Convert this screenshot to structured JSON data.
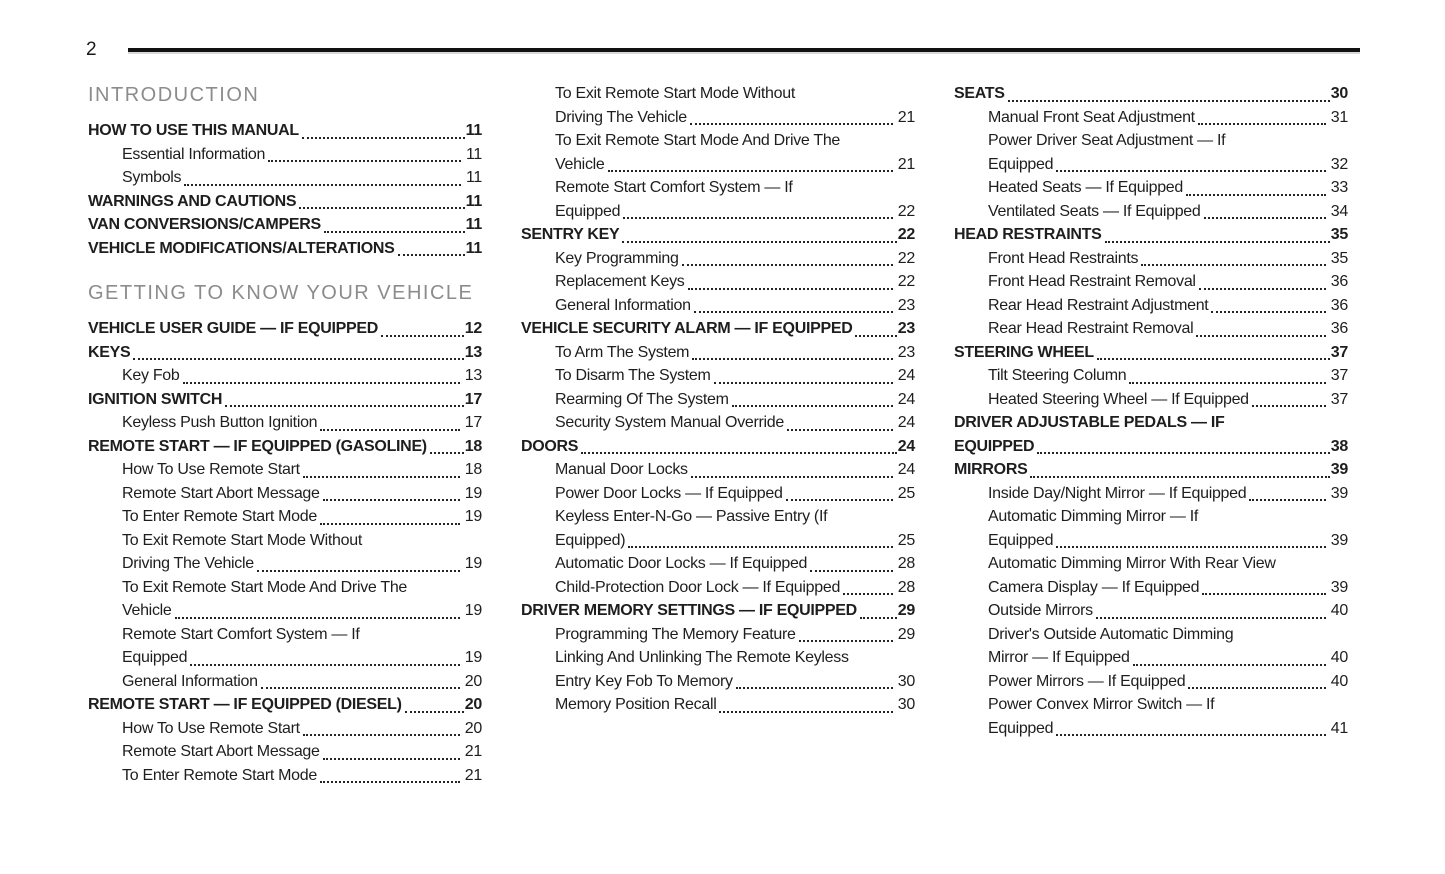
{
  "page_number": "2",
  "columns": [
    {
      "blocks": [
        {
          "type": "heading",
          "text": "INTRODUCTION"
        },
        {
          "type": "entry",
          "level": 1,
          "lines": [
            "HOW TO USE THIS MANUAL"
          ],
          "page": "11"
        },
        {
          "type": "entry",
          "level": 2,
          "lines": [
            "Essential Information"
          ],
          "page": "11"
        },
        {
          "type": "entry",
          "level": 2,
          "lines": [
            "Symbols"
          ],
          "page": "11"
        },
        {
          "type": "entry",
          "level": 1,
          "lines": [
            "WARNINGS AND CAUTIONS"
          ],
          "page": "11"
        },
        {
          "type": "entry",
          "level": 1,
          "lines": [
            "VAN CONVERSIONS/CAMPERS"
          ],
          "page": "11"
        },
        {
          "type": "entry",
          "level": 1,
          "lines": [
            "VEHICLE MODIFICATIONS/ALTERATIONS"
          ],
          "page": "11"
        },
        {
          "type": "heading",
          "text": "GETTING TO KNOW YOUR VEHICLE"
        },
        {
          "type": "entry",
          "level": 1,
          "lines": [
            "VEHICLE USER GUIDE — IF EQUIPPED"
          ],
          "page": "12"
        },
        {
          "type": "entry",
          "level": 1,
          "lines": [
            "KEYS"
          ],
          "page": "13"
        },
        {
          "type": "entry",
          "level": 2,
          "lines": [
            "Key Fob"
          ],
          "page": "13"
        },
        {
          "type": "entry",
          "level": 1,
          "lines": [
            "IGNITION SWITCH"
          ],
          "page": "17"
        },
        {
          "type": "entry",
          "level": 2,
          "lines": [
            "Keyless Push Button Ignition"
          ],
          "page": "17"
        },
        {
          "type": "entry",
          "level": 1,
          "lines": [
            "REMOTE START — IF EQUIPPED (GASOLINE)"
          ],
          "page": "18"
        },
        {
          "type": "entry",
          "level": 2,
          "lines": [
            "How To Use Remote Start"
          ],
          "page": "18"
        },
        {
          "type": "entry",
          "level": 2,
          "lines": [
            "Remote Start Abort Message"
          ],
          "page": "19"
        },
        {
          "type": "entry",
          "level": 2,
          "lines": [
            "To Enter Remote Start Mode"
          ],
          "page": "19"
        },
        {
          "type": "entry",
          "level": 2,
          "lines": [
            "To Exit Remote Start Mode Without",
            "Driving The Vehicle"
          ],
          "page": "19"
        },
        {
          "type": "entry",
          "level": 2,
          "lines": [
            "To Exit Remote Start Mode And Drive The",
            "Vehicle"
          ],
          "page": "19"
        },
        {
          "type": "entry",
          "level": 2,
          "lines": [
            "Remote Start Comfort System — If",
            "Equipped"
          ],
          "page": "19"
        },
        {
          "type": "entry",
          "level": 2,
          "lines": [
            "General Information"
          ],
          "page": "20"
        },
        {
          "type": "entry",
          "level": 1,
          "lines": [
            "REMOTE START — IF EQUIPPED (DIESEL)"
          ],
          "page": "20"
        },
        {
          "type": "entry",
          "level": 2,
          "lines": [
            "How To Use Remote Start"
          ],
          "page": "20"
        },
        {
          "type": "entry",
          "level": 2,
          "lines": [
            "Remote Start Abort Message"
          ],
          "page": "21"
        },
        {
          "type": "entry",
          "level": 2,
          "lines": [
            "To Enter Remote Start Mode"
          ],
          "page": "21"
        }
      ]
    },
    {
      "blocks": [
        {
          "type": "entry",
          "level": 2,
          "lines": [
            "To Exit Remote Start Mode Without",
            "Driving The Vehicle"
          ],
          "page": "21"
        },
        {
          "type": "entry",
          "level": 2,
          "lines": [
            "To Exit Remote Start Mode And Drive The",
            "Vehicle"
          ],
          "page": "21"
        },
        {
          "type": "entry",
          "level": 2,
          "lines": [
            "Remote Start Comfort System — If",
            "Equipped"
          ],
          "page": "22"
        },
        {
          "type": "entry",
          "level": 1,
          "lines": [
            "SENTRY KEY"
          ],
          "page": "22"
        },
        {
          "type": "entry",
          "level": 2,
          "lines": [
            "Key Programming"
          ],
          "page": "22"
        },
        {
          "type": "entry",
          "level": 2,
          "lines": [
            "Replacement Keys"
          ],
          "page": "22"
        },
        {
          "type": "entry",
          "level": 2,
          "lines": [
            "General Information"
          ],
          "page": "23"
        },
        {
          "type": "entry",
          "level": 1,
          "lines": [
            "VEHICLE SECURITY ALARM — IF EQUIPPED"
          ],
          "page": "23"
        },
        {
          "type": "entry",
          "level": 2,
          "lines": [
            "To Arm The System"
          ],
          "page": "23"
        },
        {
          "type": "entry",
          "level": 2,
          "lines": [
            "To Disarm The System"
          ],
          "page": "24"
        },
        {
          "type": "entry",
          "level": 2,
          "lines": [
            "Rearming Of The System"
          ],
          "page": "24"
        },
        {
          "type": "entry",
          "level": 2,
          "lines": [
            "Security System Manual Override"
          ],
          "page": "24"
        },
        {
          "type": "entry",
          "level": 1,
          "lines": [
            "DOORS"
          ],
          "page": "24"
        },
        {
          "type": "entry",
          "level": 2,
          "lines": [
            "Manual Door Locks"
          ],
          "page": "24"
        },
        {
          "type": "entry",
          "level": 2,
          "lines": [
            "Power Door Locks — If Equipped"
          ],
          "page": "25"
        },
        {
          "type": "entry",
          "level": 2,
          "lines": [
            "Keyless Enter-N-Go — Passive Entry (If",
            "Equipped)"
          ],
          "page": "25"
        },
        {
          "type": "entry",
          "level": 2,
          "lines": [
            "Automatic Door Locks — If Equipped"
          ],
          "page": "28"
        },
        {
          "type": "entry",
          "level": 2,
          "lines": [
            "Child-Protection Door Lock — If Equipped"
          ],
          "page": "28"
        },
        {
          "type": "entry",
          "level": 1,
          "lines": [
            "DRIVER MEMORY SETTINGS — IF EQUIPPED"
          ],
          "page": "29"
        },
        {
          "type": "entry",
          "level": 2,
          "lines": [
            "Programming The Memory Feature"
          ],
          "page": "29"
        },
        {
          "type": "entry",
          "level": 2,
          "lines": [
            "Linking And Unlinking The Remote Keyless",
            "Entry Key Fob To Memory"
          ],
          "page": "30"
        },
        {
          "type": "entry",
          "level": 2,
          "lines": [
            "Memory Position Recall"
          ],
          "page": "30"
        }
      ]
    },
    {
      "blocks": [
        {
          "type": "entry",
          "level": 1,
          "lines": [
            "SEATS"
          ],
          "page": "30"
        },
        {
          "type": "entry",
          "level": 2,
          "lines": [
            "Manual Front Seat Adjustment"
          ],
          "page": "31"
        },
        {
          "type": "entry",
          "level": 2,
          "lines": [
            "Power Driver Seat Adjustment — If",
            "Equipped"
          ],
          "page": "32"
        },
        {
          "type": "entry",
          "level": 2,
          "lines": [
            "Heated Seats — If Equipped"
          ],
          "page": "33"
        },
        {
          "type": "entry",
          "level": 2,
          "lines": [
            "Ventilated Seats — If Equipped"
          ],
          "page": "34"
        },
        {
          "type": "entry",
          "level": 1,
          "lines": [
            "HEAD RESTRAINTS"
          ],
          "page": "35"
        },
        {
          "type": "entry",
          "level": 2,
          "lines": [
            "Front Head Restraints"
          ],
          "page": "35"
        },
        {
          "type": "entry",
          "level": 2,
          "lines": [
            "Front Head Restraint Removal"
          ],
          "page": "36"
        },
        {
          "type": "entry",
          "level": 2,
          "lines": [
            "Rear Head Restraint Adjustment"
          ],
          "page": "36"
        },
        {
          "type": "entry",
          "level": 2,
          "lines": [
            "Rear Head Restraint Removal"
          ],
          "page": "36"
        },
        {
          "type": "entry",
          "level": 1,
          "lines": [
            "STEERING WHEEL"
          ],
          "page": "37"
        },
        {
          "type": "entry",
          "level": 2,
          "lines": [
            "Tilt Steering Column"
          ],
          "page": "37"
        },
        {
          "type": "entry",
          "level": 2,
          "lines": [
            "Heated Steering Wheel — If Equipped"
          ],
          "page": "37"
        },
        {
          "type": "entry",
          "level": 1,
          "lines": [
            "DRIVER ADJUSTABLE PEDALS — IF",
            "EQUIPPED"
          ],
          "page": "38"
        },
        {
          "type": "entry",
          "level": 1,
          "lines": [
            "MIRRORS"
          ],
          "page": "39"
        },
        {
          "type": "entry",
          "level": 2,
          "lines": [
            "Inside Day/Night Mirror — If Equipped"
          ],
          "page": "39"
        },
        {
          "type": "entry",
          "level": 2,
          "lines": [
            "Automatic Dimming Mirror — If",
            "Equipped"
          ],
          "page": "39"
        },
        {
          "type": "entry",
          "level": 2,
          "lines": [
            "Automatic Dimming Mirror With Rear View",
            "Camera Display — If Equipped"
          ],
          "page": "39"
        },
        {
          "type": "entry",
          "level": 2,
          "lines": [
            "Outside Mirrors"
          ],
          "page": "40"
        },
        {
          "type": "entry",
          "level": 2,
          "lines": [
            "Driver's Outside Automatic Dimming",
            "Mirror — If Equipped"
          ],
          "page": "40"
        },
        {
          "type": "entry",
          "level": 2,
          "lines": [
            "Power Mirrors — If Equipped"
          ],
          "page": "40"
        },
        {
          "type": "entry",
          "level": 2,
          "lines": [
            "Power Convex Mirror Switch — If",
            "Equipped"
          ],
          "page": "41"
        }
      ]
    }
  ]
}
